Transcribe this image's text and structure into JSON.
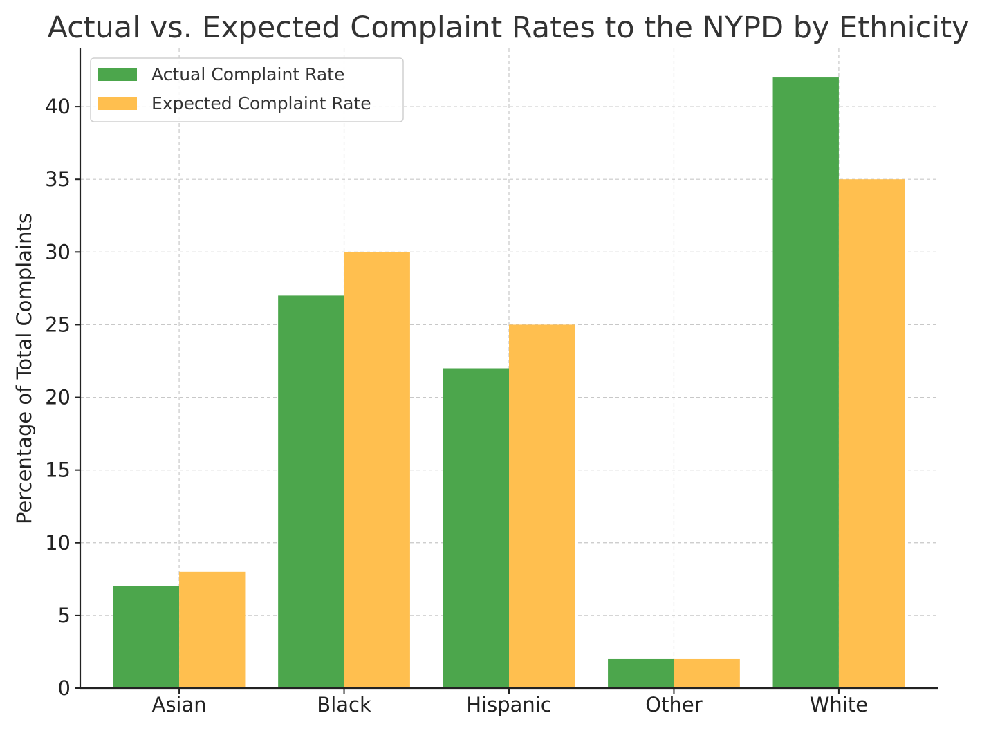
{
  "chart_data": {
    "type": "bar",
    "title": "Actual vs. Expected Complaint Rates to the NYPD by Ethnicity",
    "xlabel": "",
    "ylabel": "Percentage of Total Complaints",
    "categories": [
      "Asian",
      "Black",
      "Hispanic",
      "Other",
      "White"
    ],
    "series": [
      {
        "name": "Actual Complaint Rate",
        "values": [
          7,
          27,
          22,
          2,
          42
        ],
        "color": "#4ca64c"
      },
      {
        "name": "Expected Complaint Rate",
        "values": [
          8,
          30,
          25,
          2,
          35
        ],
        "color": "#ffbf4f"
      }
    ],
    "ylim": [
      0,
      44
    ],
    "yticks": [
      0,
      5,
      10,
      15,
      20,
      25,
      30,
      35,
      40
    ],
    "grid": true,
    "legend_position": "top-left"
  }
}
